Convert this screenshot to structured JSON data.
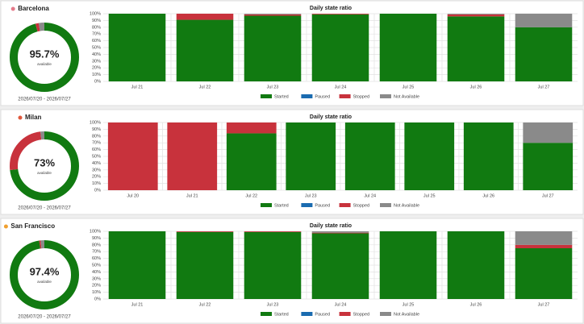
{
  "chart_data": [
    {
      "type": "donut",
      "title": "Barcelona",
      "title_dot_color": "#e57a8a",
      "subtitle": "2026/07/20 - 2026/07/27",
      "center": {
        "value": 95.7,
        "label": "95.7%"
      },
      "center_caption": "available",
      "categories": [
        "Started",
        "Stopped",
        "Not Available"
      ],
      "values": [
        95.7,
        1.5,
        2.8
      ],
      "colors": [
        "#117a11",
        "#c8323c",
        "#8a8a8a"
      ]
    },
    {
      "type": "bar",
      "stacked": true,
      "title": "Daily state ratio",
      "categories": [
        "Jul 21",
        "Jul 22",
        "Jul 23",
        "Jul 24",
        "Jul 25",
        "Jul 26",
        "Jul 27"
      ],
      "series": [
        {
          "name": "Started",
          "color": "#117a11",
          "values": [
            100,
            91,
            97,
            99,
            100,
            96,
            80
          ]
        },
        {
          "name": "Paused",
          "color": "#1a6bb0",
          "values": [
            0,
            0,
            0,
            0,
            0,
            0,
            0
          ]
        },
        {
          "name": "Stopped",
          "color": "#c8323c",
          "values": [
            0,
            9,
            2,
            1,
            0,
            3,
            0
          ]
        },
        {
          "name": "Not Available",
          "color": "#8a8a8a",
          "values": [
            0,
            0,
            1,
            0,
            0,
            1,
            20
          ]
        }
      ],
      "ylim": [
        0,
        100
      ],
      "yticks": [
        {
          "value": 0,
          "label": "0%"
        },
        {
          "value": 10,
          "label": "10%"
        },
        {
          "value": 20,
          "label": "20%"
        },
        {
          "value": 30,
          "label": "30%"
        },
        {
          "value": 40,
          "label": "40%"
        },
        {
          "value": 50,
          "label": "50%"
        },
        {
          "value": 60,
          "label": "60%"
        },
        {
          "value": 70,
          "label": "70%"
        },
        {
          "value": 80,
          "label": "80%"
        },
        {
          "value": 90,
          "label": "90%"
        },
        {
          "value": 100,
          "label": "100%"
        }
      ],
      "grid": true,
      "legend": "bottom"
    },
    {
      "type": "donut",
      "title": "Milan",
      "title_dot_color": "#e0583c",
      "subtitle": "2026/07/20 - 2026/07/27",
      "center": {
        "value": 73,
        "label": "73%"
      },
      "center_caption": "available",
      "categories": [
        "Started",
        "Stopped",
        "Not Available"
      ],
      "values": [
        73,
        25,
        2
      ],
      "colors": [
        "#117a11",
        "#c8323c",
        "#8a8a8a"
      ]
    },
    {
      "type": "bar",
      "stacked": true,
      "title": "Daily state ratio",
      "categories": [
        "Jul 20",
        "Jul 21",
        "Jul 22",
        "Jul 23",
        "Jul 24",
        "Jul 25",
        "Jul 26",
        "Jul 27"
      ],
      "series": [
        {
          "name": "Started",
          "color": "#117a11",
          "values": [
            0,
            0,
            84,
            100,
            100,
            100,
            100,
            70
          ]
        },
        {
          "name": "Paused",
          "color": "#1a6bb0",
          "values": [
            0,
            0,
            0,
            0,
            0,
            0,
            0,
            0
          ]
        },
        {
          "name": "Stopped",
          "color": "#c8323c",
          "values": [
            100,
            100,
            16,
            0,
            0,
            0,
            0,
            0
          ]
        },
        {
          "name": "Not Available",
          "color": "#8a8a8a",
          "values": [
            0,
            0,
            0,
            0,
            0,
            0,
            0,
            30
          ]
        }
      ],
      "ylim": [
        0,
        100
      ],
      "yticks": [
        {
          "value": 0,
          "label": "0%"
        },
        {
          "value": 10,
          "label": "10%"
        },
        {
          "value": 20,
          "label": "20%"
        },
        {
          "value": 30,
          "label": "30%"
        },
        {
          "value": 40,
          "label": "40%"
        },
        {
          "value": 50,
          "label": "50%"
        },
        {
          "value": 60,
          "label": "60%"
        },
        {
          "value": 70,
          "label": "70%"
        },
        {
          "value": 80,
          "label": "80%"
        },
        {
          "value": 90,
          "label": "90%"
        },
        {
          "value": 100,
          "label": "100%"
        }
      ],
      "grid": true,
      "legend": "bottom"
    },
    {
      "type": "donut",
      "title": "San Francisco",
      "title_dot_color": "#f0a030",
      "subtitle": "2026/07/20 - 2026/07/27",
      "center": {
        "value": 97.4,
        "label": "97.4%"
      },
      "center_caption": "available",
      "categories": [
        "Started",
        "Stopped",
        "Not Available"
      ],
      "values": [
        97.4,
        0.7,
        1.9
      ],
      "colors": [
        "#117a11",
        "#c8323c",
        "#8a8a8a"
      ]
    },
    {
      "type": "bar",
      "stacked": true,
      "title": "Daily state ratio",
      "categories": [
        "Jul 21",
        "Jul 22",
        "Jul 23",
        "Jul 24",
        "Jul 25",
        "Jul 26",
        "Jul 27"
      ],
      "series": [
        {
          "name": "Started",
          "color": "#117a11",
          "values": [
            100,
            99,
            99,
            97,
            100,
            100,
            75
          ]
        },
        {
          "name": "Paused",
          "color": "#1a6bb0",
          "values": [
            0,
            0,
            0,
            0,
            0,
            0,
            0
          ]
        },
        {
          "name": "Stopped",
          "color": "#c8323c",
          "values": [
            0,
            1,
            1,
            1,
            0,
            0,
            5
          ]
        },
        {
          "name": "Not Available",
          "color": "#8a8a8a",
          "values": [
            0,
            0,
            0,
            2,
            0,
            0,
            20
          ]
        }
      ],
      "ylim": [
        0,
        100
      ],
      "yticks": [
        {
          "value": 0,
          "label": "0%"
        },
        {
          "value": 10,
          "label": "10%"
        },
        {
          "value": 20,
          "label": "20%"
        },
        {
          "value": 30,
          "label": "30%"
        },
        {
          "value": 40,
          "label": "40%"
        },
        {
          "value": 50,
          "label": "50%"
        },
        {
          "value": 60,
          "label": "60%"
        },
        {
          "value": 70,
          "label": "70%"
        },
        {
          "value": 80,
          "label": "80%"
        },
        {
          "value": 90,
          "label": "90%"
        },
        {
          "value": 100,
          "label": "100%"
        }
      ],
      "grid": true,
      "legend": "bottom"
    }
  ]
}
